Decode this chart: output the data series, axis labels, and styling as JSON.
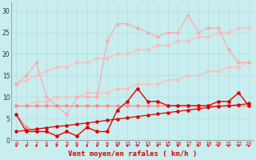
{
  "x": [
    0,
    1,
    2,
    3,
    4,
    5,
    6,
    7,
    8,
    9,
    10,
    11,
    12,
    13,
    14,
    15,
    16,
    17,
    18,
    19,
    20,
    21,
    22,
    23
  ],
  "y_lightest_spiky": [
    13,
    15,
    18,
    10,
    8,
    6,
    10,
    10,
    10,
    23,
    27,
    27,
    26,
    25,
    24,
    25,
    25,
    29,
    25,
    26,
    26,
    21,
    18,
    18
  ],
  "y_light_linear_top": [
    13,
    14,
    15,
    16,
    17,
    17,
    18,
    18,
    19,
    19,
    20,
    20,
    21,
    21,
    22,
    22,
    23,
    23,
    24,
    24,
    25,
    25,
    26,
    26
  ],
  "y_light_linear_bot": [
    8,
    8,
    9,
    9,
    10,
    10,
    10,
    11,
    11,
    11,
    12,
    12,
    13,
    13,
    13,
    14,
    14,
    15,
    15,
    16,
    16,
    17,
    17,
    18
  ],
  "y_med_flat": [
    8,
    8,
    8,
    8,
    8,
    8,
    8,
    8,
    8,
    8,
    8,
    8,
    8,
    8,
    8,
    8,
    8,
    8,
    8,
    8,
    8,
    8,
    8,
    8
  ],
  "y_med_spiky": [
    6,
    3,
    2,
    2,
    1,
    2,
    1,
    3,
    2,
    2,
    7,
    9,
    12,
    9,
    9,
    8,
    8,
    8,
    8,
    8,
    9,
    9,
    11,
    8
  ],
  "y_dark_volatile": [
    6,
    2,
    2,
    2,
    1,
    2,
    1,
    3,
    2,
    2,
    7,
    9,
    12,
    9,
    9,
    8,
    8,
    8,
    8,
    8,
    9,
    9,
    11,
    8
  ],
  "y_dark_linear": [
    2,
    2.3,
    2.6,
    2.9,
    3.2,
    3.4,
    3.7,
    4.0,
    4.3,
    4.6,
    4.9,
    5.2,
    5.5,
    5.8,
    6.1,
    6.4,
    6.7,
    7.0,
    7.3,
    7.6,
    7.9,
    8.0,
    8.2,
    8.5
  ],
  "bg_color": "#c8eef0",
  "grid_color": "#b0dede",
  "color_lightest": "#ffbbbb",
  "color_light": "#ffaaaa",
  "color_med": "#ff8888",
  "color_dark": "#dd0000",
  "xlabel": "Vent moyen/en rafales ( km/h )",
  "ylim": [
    0,
    32
  ],
  "xlim": [
    -0.5,
    23.5
  ],
  "yticks": [
    0,
    5,
    10,
    15,
    20,
    25,
    30
  ]
}
